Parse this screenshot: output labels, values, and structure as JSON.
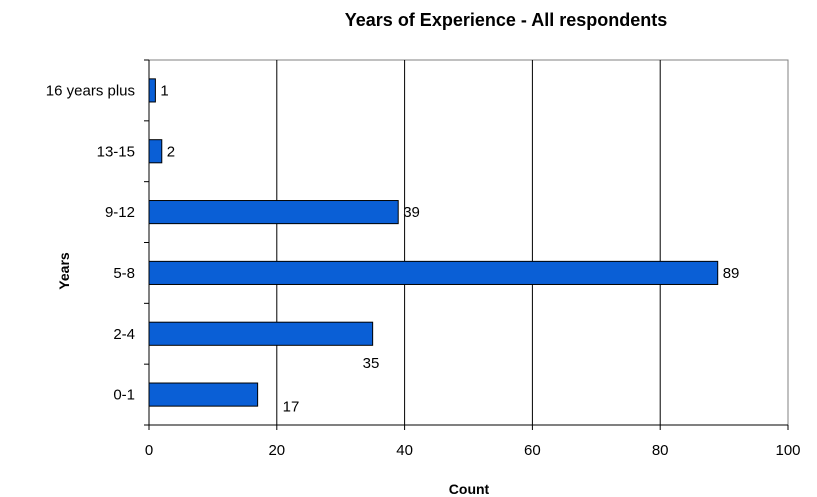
{
  "chart_data": {
    "type": "bar",
    "orientation": "horizontal",
    "title": "Years of Experience - All respondents",
    "xlabel": "Count",
    "ylabel": "Years",
    "categories": [
      "0-1",
      "2-4",
      "5-8",
      "9-12",
      "13-15",
      "16 years plus"
    ],
    "values": [
      17,
      35,
      89,
      39,
      2,
      1
    ],
    "xlim": [
      0,
      100
    ],
    "xticks": [
      0,
      20,
      40,
      60,
      80,
      100
    ],
    "grid": "vertical",
    "legend": "none",
    "bar_color": "#0a5fd6",
    "bar_edge_color": "#000000"
  }
}
